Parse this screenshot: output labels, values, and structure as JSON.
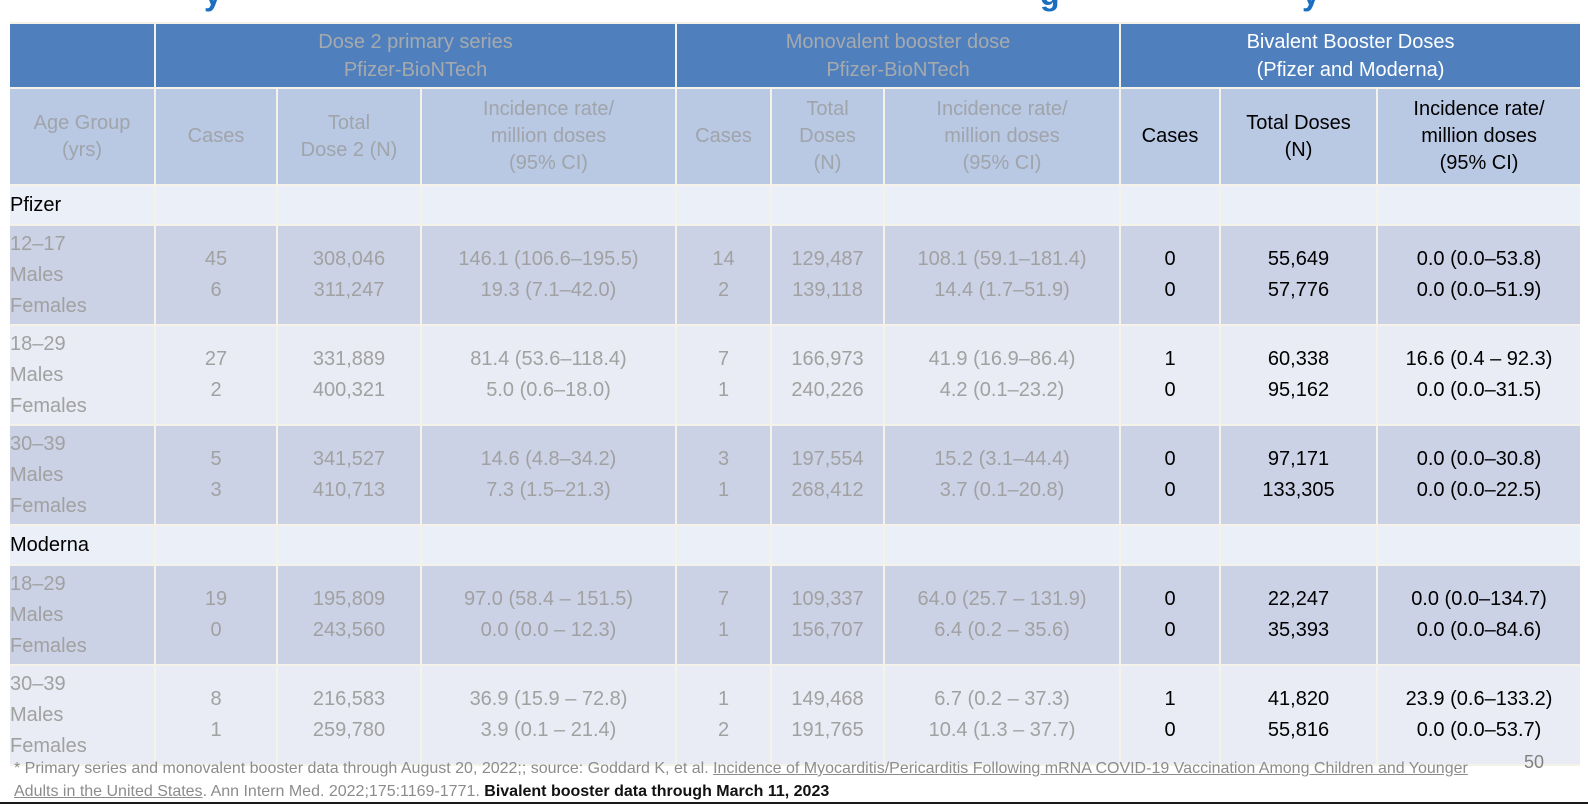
{
  "title_fragments": [
    "y",
    "g",
    "y"
  ],
  "page": {
    "number": "50"
  },
  "colors": {
    "group_header_bg": "#4f80bd",
    "subheader_bg": "#b9c8e3",
    "row_dark_bg": "#ccd2e6",
    "row_light_bg": "#e9ecf4",
    "section_row_bg": "#ebeff7",
    "muted_text": "#a1a1a1",
    "emphasis_text": "#000000",
    "title_blue": "#1a6fc0"
  },
  "table": {
    "groups": [
      {
        "lines": [
          "Dose 2 primary series",
          "Pfizer-BioNTech"
        ],
        "tone": "muted"
      },
      {
        "lines": [
          "Monovalent booster dose",
          "Pfizer-BioNTech"
        ],
        "tone": "muted"
      },
      {
        "lines": [
          "Bivalent Booster Doses",
          "(Pfizer and Moderna)"
        ],
        "tone": "strong"
      }
    ],
    "columns": [
      {
        "lines": [
          "Age Group",
          "(yrs)"
        ],
        "tone": "muted"
      },
      {
        "lines": [
          "Cases"
        ],
        "tone": "muted"
      },
      {
        "lines": [
          "Total",
          "Dose 2 (N)"
        ],
        "tone": "muted"
      },
      {
        "lines": [
          "Incidence rate/",
          "million doses",
          "(95% CI)"
        ],
        "tone": "muted"
      },
      {
        "lines": [
          "Cases"
        ],
        "tone": "muted"
      },
      {
        "lines": [
          "Total",
          "Doses",
          "(N)"
        ],
        "tone": "muted"
      },
      {
        "lines": [
          "Incidence rate/",
          "million doses",
          "(95% CI)"
        ],
        "tone": "muted"
      },
      {
        "lines": [
          "Cases"
        ],
        "tone": "strong"
      },
      {
        "lines": [
          "Total Doses",
          "(N)"
        ],
        "tone": "strong"
      },
      {
        "lines": [
          "Incidence rate/",
          "million doses",
          "(95% CI)"
        ],
        "tone": "strong"
      }
    ],
    "sections": [
      {
        "label": "Pfizer",
        "rows": [
          {
            "age": "12–17",
            "sex_lines": [
              "Males",
              "Females"
            ],
            "shade": "dark",
            "dose2": {
              "cases": [
                "45",
                "6"
              ],
              "total": [
                "308,046",
                "311,247"
              ],
              "rate": [
                "146.1 (106.6–195.5)",
                "19.3 (7.1–42.0)"
              ]
            },
            "monovalent": {
              "cases": [
                "14",
                "2"
              ],
              "total": [
                "129,487",
                "139,118"
              ],
              "rate": [
                "108.1 (59.1–181.4)",
                "14.4 (1.7–51.9)"
              ]
            },
            "bivalent": {
              "cases": [
                "0",
                "0"
              ],
              "total": [
                "55,649",
                "57,776"
              ],
              "rate": [
                "0.0 (0.0–53.8)",
                "0.0 (0.0–51.9)"
              ]
            }
          },
          {
            "age": "18–29",
            "sex_lines": [
              "Males",
              "Females"
            ],
            "shade": "light",
            "dose2": {
              "cases": [
                "27",
                "2"
              ],
              "total": [
                "331,889",
                "400,321"
              ],
              "rate": [
                "81.4 (53.6–118.4)",
                "5.0 (0.6–18.0)"
              ]
            },
            "monovalent": {
              "cases": [
                "7",
                "1"
              ],
              "total": [
                "166,973",
                "240,226"
              ],
              "rate": [
                "41.9 (16.9–86.4)",
                "4.2 (0.1–23.2)"
              ]
            },
            "bivalent": {
              "cases": [
                "1",
                "0"
              ],
              "total": [
                "60,338",
                "95,162"
              ],
              "rate": [
                "16.6 (0.4 – 92.3)",
                "0.0 (0.0–31.5)"
              ]
            }
          },
          {
            "age": "30–39",
            "sex_lines": [
              "Males",
              "Females"
            ],
            "shade": "dark",
            "dose2": {
              "cases": [
                "5",
                "3"
              ],
              "total": [
                "341,527",
                "410,713"
              ],
              "rate": [
                "14.6 (4.8–34.2)",
                "7.3 (1.5–21.3)"
              ]
            },
            "monovalent": {
              "cases": [
                "3",
                "1"
              ],
              "total": [
                "197,554",
                "268,412"
              ],
              "rate": [
                "15.2 (3.1–44.4)",
                "3.7 (0.1–20.8)"
              ]
            },
            "bivalent": {
              "cases": [
                "0",
                "0"
              ],
              "total": [
                "97,171",
                "133,305"
              ],
              "rate": [
                "0.0 (0.0–30.8)",
                "0.0 (0.0–22.5)"
              ]
            }
          }
        ]
      },
      {
        "label": "Moderna",
        "rows": [
          {
            "age": "18–29",
            "sex_lines": [
              "Males",
              "Females"
            ],
            "shade": "dark",
            "dose2": {
              "cases": [
                "19",
                "0"
              ],
              "total": [
                "195,809",
                "243,560"
              ],
              "rate": [
                "97.0 (58.4 – 151.5)",
                "0.0 (0.0 – 12.3)"
              ]
            },
            "monovalent": {
              "cases": [
                "7",
                "1"
              ],
              "total": [
                "109,337",
                "156,707"
              ],
              "rate": [
                "64.0 (25.7 – 131.9)",
                "6.4 (0.2 – 35.6)"
              ]
            },
            "bivalent": {
              "cases": [
                "0",
                "0"
              ],
              "total": [
                "22,247",
                "35,393"
              ],
              "rate": [
                "0.0 (0.0–134.7)",
                "0.0 (0.0–84.6)"
              ]
            }
          },
          {
            "age": "30–39",
            "sex_lines": [
              "Males",
              "Females"
            ],
            "shade": "light",
            "dose2": {
              "cases": [
                "8",
                "1"
              ],
              "total": [
                "216,583",
                "259,780"
              ],
              "rate": [
                "36.9 (15.9 – 72.8)",
                "3.9 (0.1 – 21.4)"
              ]
            },
            "monovalent": {
              "cases": [
                "1",
                "2"
              ],
              "total": [
                "149,468",
                "191,765"
              ],
              "rate": [
                "6.7 (0.2 – 37.3)",
                "10.4 (1.3 – 37.7)"
              ]
            },
            "bivalent": {
              "cases": [
                "1",
                "0"
              ],
              "total": [
                "41,820",
                "55,816"
              ],
              "rate": [
                "23.9 (0.6–133.2)",
                "0.0 (0.0–53.7)"
              ]
            }
          }
        ]
      }
    ]
  },
  "footnote": {
    "segments": [
      {
        "text": "* Primary series and monovalent booster data through August 20, 2022;; source: Goddard K, et al. ",
        "style": "plain"
      },
      {
        "text": "Incidence of Myocarditis/Pericarditis Following mRNA COVID-19 Vaccination Among Children and Younger Adults in the United States",
        "style": "underline"
      },
      {
        "text": ". Ann Intern Med. 2022;175:1169-1771. ",
        "style": "plain"
      },
      {
        "text": "Bivalent booster data through March 11, 2023",
        "style": "bold"
      }
    ]
  }
}
